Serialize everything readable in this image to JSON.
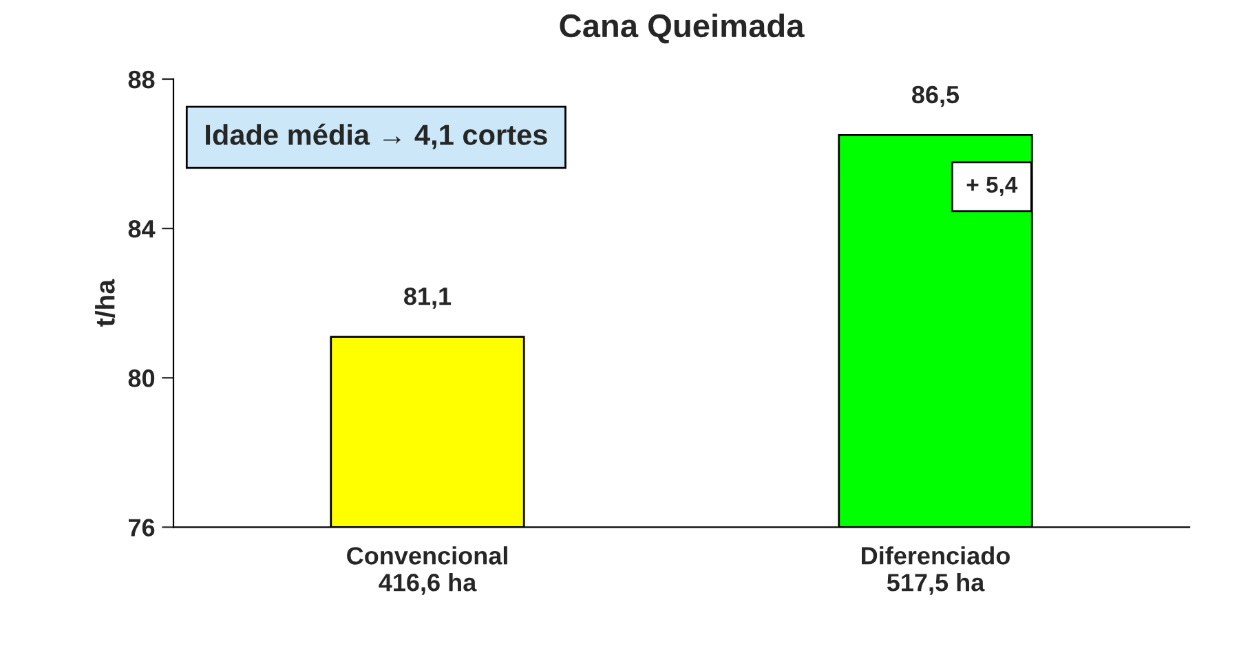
{
  "chart_data": {
    "type": "bar",
    "title": "Cana Queimada",
    "ylabel": "t/ha",
    "categories": [
      "Convencional\n416,6 ha",
      "Diferenciado\n517,5 ha"
    ],
    "values": [
      81.1,
      86.5
    ],
    "colors": [
      "#ffff00",
      "#00ff00"
    ],
    "value_labels": [
      "81,1",
      "86,5"
    ],
    "ylim": [
      76,
      88
    ],
    "yticks": [
      76,
      80,
      84,
      88
    ],
    "annotations": [
      "Idade média → 4,1 cortes",
      "+ 5,4"
    ],
    "grid": false,
    "legend": false
  }
}
